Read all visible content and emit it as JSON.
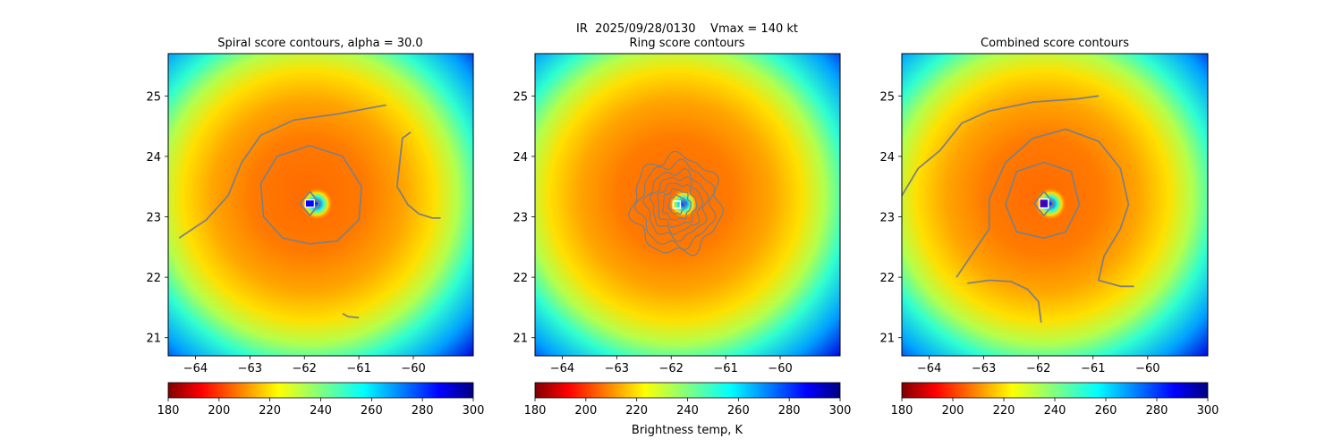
{
  "figure": {
    "suptitle": "IR  2025/09/28/0130    Vmax = 140 kt"
  },
  "colorbar_label": "Brightness temp, K",
  "colors": {
    "contour": "#808080",
    "center_marker": "#ffffff",
    "colormap": "jet_r"
  },
  "chart_data": [
    {
      "type": "heatmap",
      "title": "Spiral score contours, alpha = 30.0",
      "xlim": [
        -64.5,
        -58.9
      ],
      "ylim": [
        20.7,
        25.7
      ],
      "xticks": [
        -64,
        -63,
        -62,
        -61,
        -60
      ],
      "xtick_labels": [
        "−64",
        "−63",
        "−62",
        "−61",
        "−60"
      ],
      "yticks": [
        21,
        22,
        23,
        24,
        25
      ],
      "ytick_labels": [
        "21",
        "22",
        "23",
        "24",
        "25"
      ],
      "center": [
        -61.9,
        23.22
      ],
      "contours": [
        {
          "name": "spiral-contour-outer",
          "points": [
            [
              -64.3,
              22.65
            ],
            [
              -63.8,
              22.95
            ],
            [
              -63.4,
              23.35
            ],
            [
              -63.15,
              23.9
            ],
            [
              -62.8,
              24.35
            ],
            [
              -62.2,
              24.6
            ],
            [
              -61.4,
              24.7
            ],
            [
              -60.5,
              24.85
            ]
          ]
        },
        {
          "name": "spiral-contour-ring",
          "points": [
            [
              -61.9,
              24.18
            ],
            [
              -61.3,
              24.0
            ],
            [
              -60.95,
              23.5
            ],
            [
              -61.0,
              22.95
            ],
            [
              -61.4,
              22.6
            ],
            [
              -61.9,
              22.55
            ],
            [
              -62.4,
              22.65
            ],
            [
              -62.75,
              23.0
            ],
            [
              -62.8,
              23.55
            ],
            [
              -62.5,
              24.0
            ],
            [
              -61.9,
              24.18
            ]
          ]
        },
        {
          "name": "spiral-contour-east",
          "points": [
            [
              -60.05,
              24.4
            ],
            [
              -60.2,
              24.3
            ],
            [
              -60.25,
              23.9
            ],
            [
              -60.3,
              23.5
            ],
            [
              -60.1,
              23.2
            ],
            [
              -59.9,
              23.05
            ],
            [
              -59.65,
              22.98
            ],
            [
              -59.5,
              22.98
            ]
          ]
        },
        {
          "name": "spiral-contour-south",
          "points": [
            [
              -61.3,
              21.4
            ],
            [
              -61.2,
              21.35
            ],
            [
              -61.0,
              21.33
            ]
          ]
        },
        {
          "name": "spiral-contour-eye",
          "points": [
            [
              -61.9,
              23.42
            ],
            [
              -61.72,
              23.22
            ],
            [
              -61.9,
              23.02
            ],
            [
              -62.08,
              23.22
            ],
            [
              -61.9,
              23.42
            ]
          ]
        }
      ],
      "colorbar": {
        "vmin": 180,
        "vmax": 300,
        "ticks": [
          "180",
          "200",
          "220",
          "240",
          "260",
          "280",
          "300"
        ]
      }
    },
    {
      "type": "heatmap",
      "title": "Ring score contours",
      "xlim": [
        -64.5,
        -58.9
      ],
      "ylim": [
        20.7,
        25.7
      ],
      "xticks": [
        -64,
        -63,
        -62,
        -61,
        -60
      ],
      "xtick_labels": [
        "−64",
        "−63",
        "−62",
        "−61",
        "−60"
      ],
      "yticks": [
        21,
        22,
        23,
        24,
        25
      ],
      "ytick_labels": [
        "21",
        "22",
        "23",
        "24",
        "25"
      ],
      "center": [
        -61.9,
        23.2
      ],
      "ring_radii_deg": [
        0.15,
        0.25,
        0.35,
        0.45,
        0.55,
        0.68,
        0.8
      ],
      "colorbar": {
        "vmin": 180,
        "vmax": 300,
        "ticks": [
          "180",
          "200",
          "220",
          "240",
          "260",
          "280",
          "300"
        ]
      }
    },
    {
      "type": "heatmap",
      "title": "Combined score contours",
      "xlim": [
        -64.5,
        -58.9
      ],
      "ylim": [
        20.7,
        25.7
      ],
      "xticks": [
        -64,
        -63,
        -62,
        -61,
        -60
      ],
      "xtick_labels": [
        "−64",
        "−63",
        "−62",
        "−61",
        "−60"
      ],
      "yticks": [
        21,
        22,
        23,
        24,
        25
      ],
      "ytick_labels": [
        "21",
        "22",
        "23",
        "24",
        "25"
      ],
      "center": [
        -61.9,
        23.22
      ],
      "contours": [
        {
          "name": "combined-contour-north-arc",
          "points": [
            [
              -64.5,
              23.35
            ],
            [
              -64.2,
              23.8
            ],
            [
              -63.8,
              24.1
            ],
            [
              -63.4,
              24.55
            ],
            [
              -62.9,
              24.75
            ],
            [
              -62.1,
              24.9
            ],
            [
              -61.3,
              24.95
            ],
            [
              -60.9,
              25.0
            ]
          ]
        },
        {
          "name": "combined-contour-big-ring",
          "points": [
            [
              -63.5,
              22.0
            ],
            [
              -63.2,
              22.4
            ],
            [
              -62.9,
              22.8
            ],
            [
              -62.9,
              23.3
            ],
            [
              -62.6,
              23.9
            ],
            [
              -62.1,
              24.3
            ],
            [
              -61.5,
              24.45
            ],
            [
              -60.9,
              24.25
            ],
            [
              -60.5,
              23.8
            ],
            [
              -60.35,
              23.2
            ],
            [
              -60.5,
              22.8
            ],
            [
              -60.8,
              22.35
            ],
            [
              -60.9,
              21.95
            ],
            [
              -60.5,
              21.85
            ],
            [
              -60.25,
              21.85
            ]
          ]
        },
        {
          "name": "combined-contour-ring",
          "points": [
            [
              -61.9,
              23.9
            ],
            [
              -61.4,
              23.75
            ],
            [
              -61.25,
              23.2
            ],
            [
              -61.5,
              22.75
            ],
            [
              -61.9,
              22.65
            ],
            [
              -62.4,
              22.75
            ],
            [
              -62.6,
              23.2
            ],
            [
              -62.4,
              23.75
            ],
            [
              -61.9,
              23.9
            ]
          ]
        },
        {
          "name": "combined-contour-south",
          "points": [
            [
              -63.3,
              21.9
            ],
            [
              -62.9,
              21.95
            ],
            [
              -62.5,
              21.93
            ],
            [
              -62.2,
              21.8
            ],
            [
              -62.0,
              21.6
            ],
            [
              -61.95,
              21.25
            ]
          ]
        },
        {
          "name": "combined-contour-eye",
          "points": [
            [
              -61.9,
              23.42
            ],
            [
              -61.72,
              23.22
            ],
            [
              -61.9,
              23.02
            ],
            [
              -62.08,
              23.22
            ],
            [
              -61.9,
              23.42
            ]
          ]
        }
      ],
      "colorbar": {
        "vmin": 180,
        "vmax": 300,
        "ticks": [
          "180",
          "200",
          "220",
          "240",
          "260",
          "280",
          "300"
        ]
      }
    }
  ]
}
